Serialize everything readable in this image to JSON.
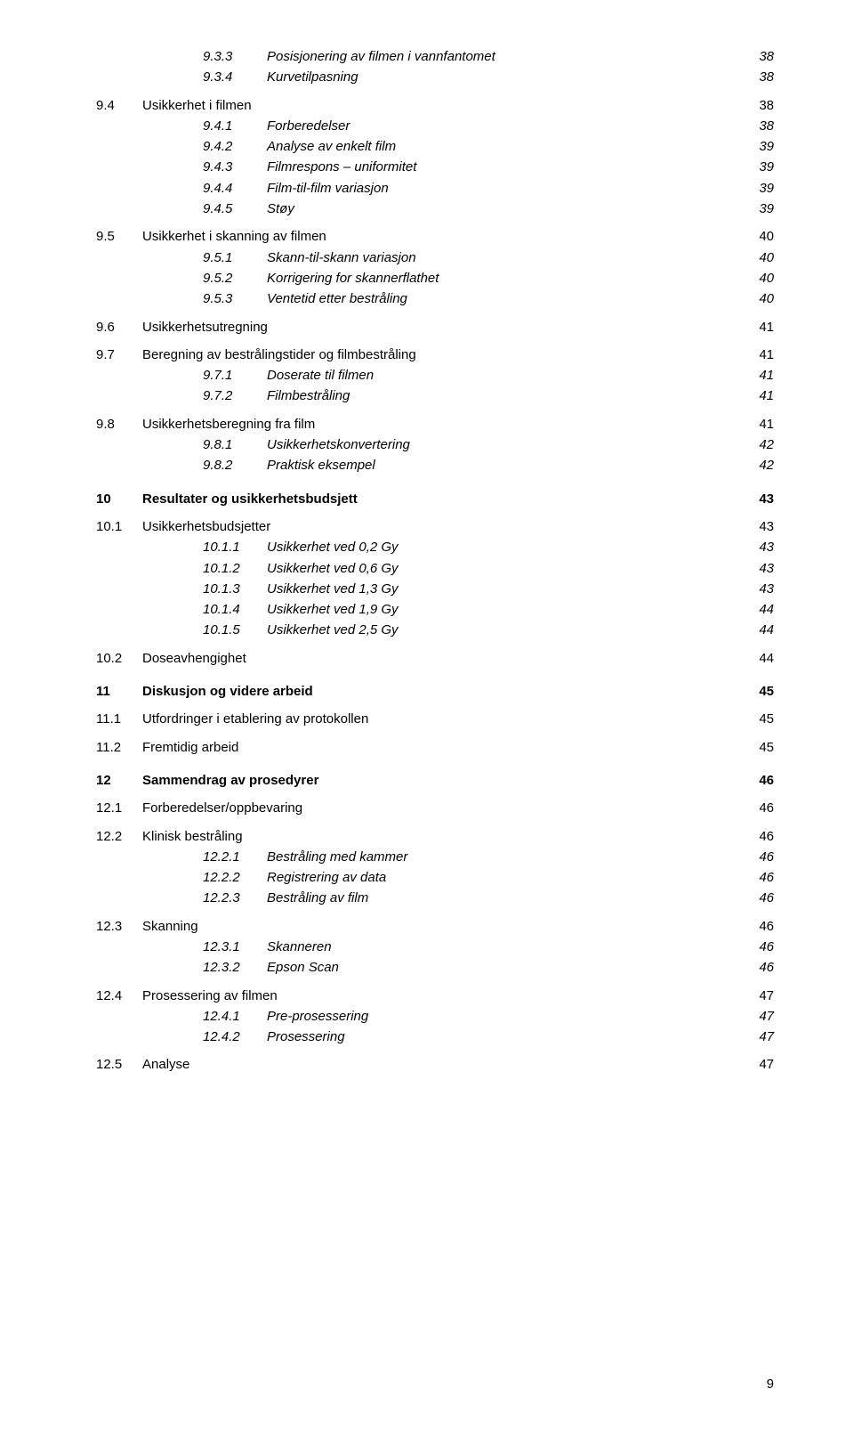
{
  "page_number": "9",
  "entries": [
    {
      "level": 3,
      "num": "9.3.3",
      "text": "Posisjonering av filmen i vannfantomet",
      "page": "38"
    },
    {
      "level": 3,
      "num": "9.3.4",
      "text": "Kurvetilpasning",
      "page": "38"
    },
    {
      "level": 2,
      "num": "9.4",
      "text": "Usikkerhet i filmen",
      "page": "38"
    },
    {
      "level": 3,
      "num": "9.4.1",
      "text": "Forberedelser",
      "page": "38"
    },
    {
      "level": 3,
      "num": "9.4.2",
      "text": "Analyse av enkelt film",
      "page": "39"
    },
    {
      "level": 3,
      "num": "9.4.3",
      "text": "Filmrespons – uniformitet",
      "page": "39"
    },
    {
      "level": 3,
      "num": "9.4.4",
      "text": "Film-til-film variasjon",
      "page": "39"
    },
    {
      "level": 3,
      "num": "9.4.5",
      "text": "Støy",
      "page": "39"
    },
    {
      "level": 2,
      "num": "9.5",
      "text": "Usikkerhet i skanning av filmen",
      "page": "40"
    },
    {
      "level": 3,
      "num": "9.5.1",
      "text": "Skann-til-skann variasjon",
      "page": "40"
    },
    {
      "level": 3,
      "num": "9.5.2",
      "text": "Korrigering for skannerflathet",
      "page": "40"
    },
    {
      "level": 3,
      "num": "9.5.3",
      "text": "Ventetid etter bestråling",
      "page": "40"
    },
    {
      "level": 2,
      "num": "9.6",
      "text": "Usikkerhetsutregning",
      "page": "41"
    },
    {
      "level": 2,
      "num": "9.7",
      "text": "Beregning av bestrålingstider og filmbestråling",
      "page": "41"
    },
    {
      "level": 3,
      "num": "9.7.1",
      "text": "Doserate til filmen",
      "page": "41"
    },
    {
      "level": 3,
      "num": "9.7.2",
      "text": "Filmbestråling",
      "page": "41"
    },
    {
      "level": 2,
      "num": "9.8",
      "text": "Usikkerhetsberegning fra film",
      "page": "41"
    },
    {
      "level": 3,
      "num": "9.8.1",
      "text": "Usikkerhetskonvertering",
      "page": "42"
    },
    {
      "level": 3,
      "num": "9.8.2",
      "text": "Praktisk eksempel",
      "page": "42"
    },
    {
      "level": 1,
      "num": "10",
      "text": "Resultater og usikkerhetsbudsjett",
      "page": "43"
    },
    {
      "level": 2,
      "num": "10.1",
      "text": "Usikkerhetsbudsjetter",
      "page": "43"
    },
    {
      "level": 3,
      "num": "10.1.1",
      "text": "Usikkerhet ved 0,2 Gy",
      "page": "43"
    },
    {
      "level": 3,
      "num": "10.1.2",
      "text": "Usikkerhet ved 0,6 Gy",
      "page": "43"
    },
    {
      "level": 3,
      "num": "10.1.3",
      "text": "Usikkerhet ved 1,3 Gy",
      "page": "43"
    },
    {
      "level": 3,
      "num": "10.1.4",
      "text": "Usikkerhet ved 1,9 Gy",
      "page": "44"
    },
    {
      "level": 3,
      "num": "10.1.5",
      "text": "Usikkerhet ved 2,5 Gy",
      "page": "44"
    },
    {
      "level": 2,
      "num": "10.2",
      "text": "Doseavhengighet",
      "page": "44"
    },
    {
      "level": 1,
      "num": "11",
      "text": "Diskusjon og videre arbeid",
      "page": "45"
    },
    {
      "level": 2,
      "num": "11.1",
      "text": "Utfordringer i etablering av protokollen",
      "page": "45"
    },
    {
      "level": 2,
      "num": "11.2",
      "text": "Fremtidig arbeid",
      "page": "45"
    },
    {
      "level": 1,
      "num": "12",
      "text": "Sammendrag av prosedyrer",
      "page": "46"
    },
    {
      "level": 2,
      "num": "12.1",
      "text": "Forberedelser/oppbevaring",
      "page": "46"
    },
    {
      "level": 2,
      "num": "12.2",
      "text": "Klinisk bestråling",
      "page": "46"
    },
    {
      "level": 3,
      "num": "12.2.1",
      "text": "Bestråling med kammer",
      "page": "46"
    },
    {
      "level": 3,
      "num": "12.2.2",
      "text": "Registrering av data",
      "page": "46"
    },
    {
      "level": 3,
      "num": "12.2.3",
      "text": "Bestråling av film",
      "page": "46"
    },
    {
      "level": 2,
      "num": "12.3",
      "text": "Skanning",
      "page": "46"
    },
    {
      "level": 3,
      "num": "12.3.1",
      "text": "Skanneren",
      "page": "46"
    },
    {
      "level": 3,
      "num": "12.3.2",
      "text": "Epson Scan",
      "page": "46"
    },
    {
      "level": 2,
      "num": "12.4",
      "text": "Prosessering av filmen",
      "page": "47"
    },
    {
      "level": 3,
      "num": "12.4.1",
      "text": "Pre-prosessering",
      "page": "47"
    },
    {
      "level": 3,
      "num": "12.4.2",
      "text": "Prosessering",
      "page": "47"
    },
    {
      "level": 2,
      "num": "12.5",
      "text": "Analyse",
      "page": "47"
    }
  ]
}
